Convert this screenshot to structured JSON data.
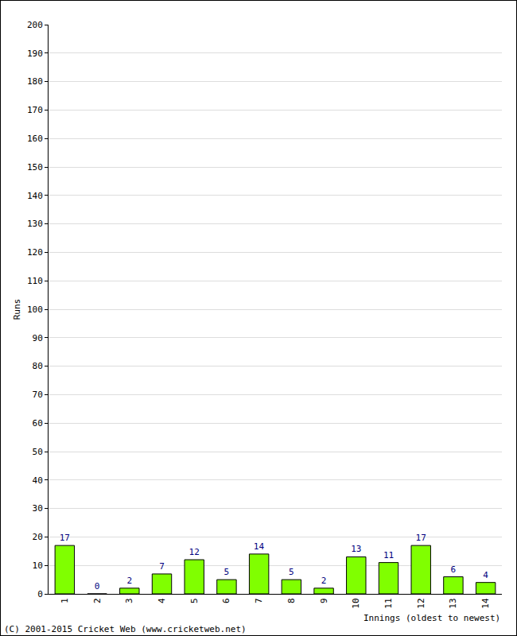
{
  "chart_data": {
    "type": "bar",
    "x_label": "Innings (oldest to newest)",
    "y_label": "Runs",
    "annotations": [
      "(C) 2001-2015 Cricket Web (www.cricketweb.net)"
    ],
    "categories": [
      "1",
      "2",
      "3",
      "4",
      "5",
      "6",
      "7",
      "8",
      "9",
      "10",
      "11",
      "12",
      "13",
      "14"
    ],
    "values": [
      17,
      0,
      2,
      7,
      12,
      5,
      14,
      5,
      2,
      13,
      11,
      17,
      6,
      4
    ],
    "color": "#80ff00",
    "ylim": [
      0,
      200
    ],
    "yticks": [
      0,
      10,
      20,
      30,
      40,
      50,
      60,
      70,
      80,
      90,
      100,
      110,
      120,
      130,
      140,
      150,
      160,
      170,
      180,
      190,
      200
    ],
    "grid": true,
    "data_labels": true
  }
}
